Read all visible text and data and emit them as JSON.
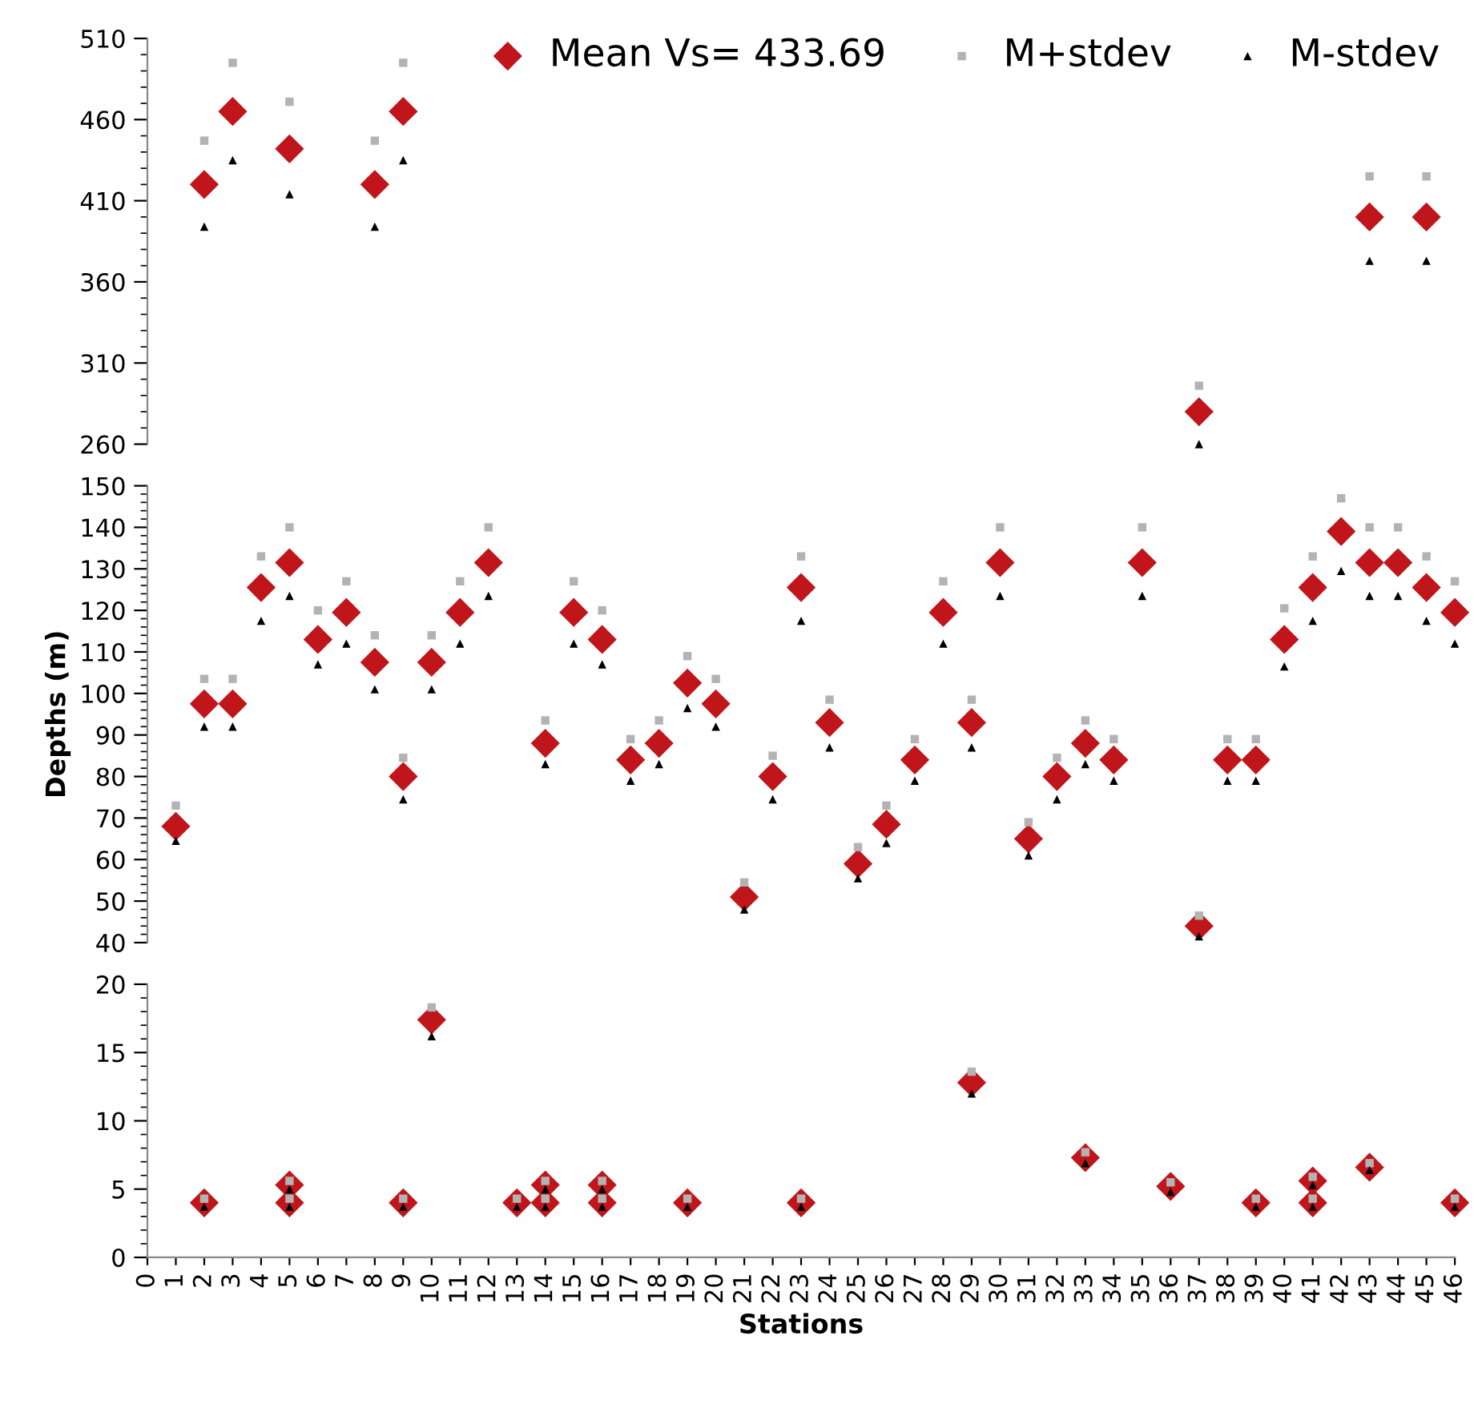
{
  "chart_data": [
    {
      "type": "scatter",
      "ylim": [
        260,
        510
      ],
      "yticks": [
        260,
        310,
        360,
        410,
        460,
        510
      ],
      "xlim": [
        0,
        46
      ],
      "tick_labels": "y",
      "legend": "top right",
      "grid": false,
      "series": [
        {
          "name": "Mean Vs= 433.69",
          "color": "#c0161b",
          "marker": "diamond",
          "x": [
            2,
            3,
            5,
            8,
            9,
            37,
            43,
            45
          ],
          "values": [
            420,
            465,
            442,
            420,
            465,
            280,
            400,
            400
          ]
        },
        {
          "name": "M+stdev",
          "color": "#b3b3b3",
          "marker": "square",
          "x": [
            2,
            3,
            5,
            8,
            9,
            37,
            43,
            45
          ],
          "values": [
            447,
            495,
            471,
            447,
            495,
            296,
            425,
            425
          ]
        },
        {
          "name": "M-stdev",
          "color": "#000000",
          "marker": "triangle",
          "x": [
            2,
            3,
            5,
            8,
            9,
            37,
            43,
            45
          ],
          "values": [
            394,
            435,
            414,
            394,
            435,
            260,
            373,
            373
          ]
        }
      ]
    },
    {
      "type": "scatter",
      "ylabel": "Depths (m)",
      "ylim": [
        40,
        150
      ],
      "yticks": [
        40,
        50,
        60,
        70,
        80,
        90,
        100,
        110,
        120,
        130,
        140,
        150
      ],
      "xlim": [
        0,
        46
      ],
      "tick_labels": "y",
      "grid": false,
      "series": [
        {
          "color": "#c0161b",
          "marker": "diamond",
          "x": [
            1,
            2,
            3,
            4,
            5,
            6,
            7,
            8,
            9,
            10,
            11,
            12,
            14,
            15,
            16,
            17,
            18,
            19,
            20,
            21,
            22,
            23,
            24,
            25,
            26,
            27,
            28,
            29,
            30,
            31,
            32,
            33,
            34,
            35,
            37,
            38,
            39,
            40,
            41,
            42,
            43,
            44,
            45,
            46
          ],
          "values": [
            68,
            97.5,
            97.5,
            125.5,
            131.5,
            113,
            119.5,
            107.5,
            80,
            107.5,
            119.5,
            131.5,
            88,
            119.5,
            113,
            84,
            88,
            102.5,
            97.5,
            51,
            80,
            125.5,
            93,
            59,
            68.5,
            84,
            119.5,
            93,
            131.5,
            65,
            80,
            88,
            84,
            131.5,
            44,
            84,
            84,
            113,
            125.5,
            139,
            131.5,
            131.5,
            125.5,
            119.5
          ]
        },
        {
          "color": "#b3b3b3",
          "marker": "square",
          "x": [
            1,
            2,
            3,
            4,
            5,
            6,
            7,
            8,
            9,
            10,
            11,
            12,
            14,
            15,
            16,
            17,
            18,
            19,
            20,
            21,
            22,
            23,
            24,
            25,
            26,
            27,
            28,
            29,
            30,
            31,
            32,
            33,
            34,
            35,
            37,
            38,
            39,
            40,
            41,
            42,
            43,
            44,
            45,
            46
          ],
          "values": [
            73,
            103.5,
            103.5,
            133,
            140,
            120,
            127,
            114,
            84.5,
            114,
            127,
            140,
            93.5,
            127,
            120,
            89,
            93.5,
            109,
            103.5,
            54.5,
            85,
            133,
            98.5,
            63,
            73,
            89,
            127,
            98.5,
            140,
            69,
            84.5,
            93.5,
            89,
            140,
            46.5,
            89,
            89,
            120.5,
            133,
            147,
            140,
            140,
            133,
            127
          ]
        },
        {
          "color": "#000000",
          "marker": "triangle",
          "x": [
            1,
            2,
            3,
            4,
            5,
            6,
            7,
            8,
            9,
            10,
            11,
            12,
            14,
            15,
            16,
            17,
            18,
            19,
            20,
            21,
            22,
            23,
            24,
            25,
            26,
            27,
            28,
            29,
            30,
            31,
            32,
            33,
            34,
            35,
            37,
            38,
            39,
            40,
            41,
            42,
            43,
            44,
            45,
            46
          ],
          "values": [
            64.5,
            92,
            92,
            117.5,
            123.5,
            107,
            112,
            101,
            74.5,
            101,
            112,
            123.5,
            83,
            112,
            107,
            79,
            83,
            96.5,
            92,
            48,
            74.5,
            117.5,
            87,
            55.5,
            64,
            79,
            112,
            87,
            123.5,
            61,
            74.5,
            83,
            79,
            123.5,
            41.5,
            79,
            79,
            106.5,
            117.5,
            129.5,
            123.5,
            123.5,
            117.5,
            112
          ]
        }
      ]
    },
    {
      "type": "scatter",
      "xlabel": "Stations",
      "ylim": [
        0,
        20
      ],
      "yticks": [
        0,
        5,
        10,
        15,
        20
      ],
      "xlim": [
        0,
        46
      ],
      "xticks": [
        0,
        1,
        2,
        3,
        4,
        5,
        6,
        7,
        8,
        9,
        10,
        11,
        12,
        13,
        14,
        15,
        16,
        17,
        18,
        19,
        20,
        21,
        22,
        23,
        24,
        25,
        26,
        27,
        28,
        29,
        30,
        31,
        32,
        33,
        34,
        35,
        36,
        37,
        38,
        39,
        40,
        41,
        42,
        43,
        44,
        45,
        46
      ],
      "grid": false,
      "series": [
        {
          "color": "#c0161b",
          "marker": "diamond",
          "x": [
            2,
            5,
            5,
            9,
            10,
            13,
            14,
            14,
            16,
            16,
            19,
            23,
            29,
            33,
            36,
            39,
            41,
            41,
            43,
            46
          ],
          "values": [
            4,
            5.3,
            4,
            4,
            17.4,
            4,
            5.3,
            4,
            5.3,
            4,
            4,
            4,
            12.8,
            7.3,
            5.2,
            4,
            5.6,
            4,
            6.6,
            4
          ]
        },
        {
          "color": "#b3b3b3",
          "marker": "square",
          "x": [
            2,
            5,
            5,
            9,
            10,
            13,
            14,
            14,
            16,
            16,
            19,
            23,
            29,
            33,
            36,
            39,
            41,
            41,
            43,
            46
          ],
          "values": [
            4.3,
            5.6,
            4.3,
            4.3,
            18.3,
            4.3,
            5.6,
            4.3,
            5.6,
            4.3,
            4.3,
            4.3,
            13.6,
            7.7,
            5.5,
            4.3,
            5.9,
            4.3,
            6.9,
            4.3
          ]
        },
        {
          "color": "#000000",
          "marker": "triangle",
          "x": [
            2,
            5,
            5,
            9,
            10,
            13,
            14,
            14,
            16,
            16,
            19,
            23,
            29,
            33,
            36,
            39,
            41,
            41,
            43,
            46
          ],
          "values": [
            3.7,
            5,
            3.7,
            3.7,
            16.2,
            3.7,
            5,
            3.7,
            5,
            3.7,
            3.7,
            3.7,
            12,
            6.9,
            4.8,
            3.7,
            5.3,
            3.7,
            6.4,
            3.7
          ]
        }
      ]
    }
  ]
}
